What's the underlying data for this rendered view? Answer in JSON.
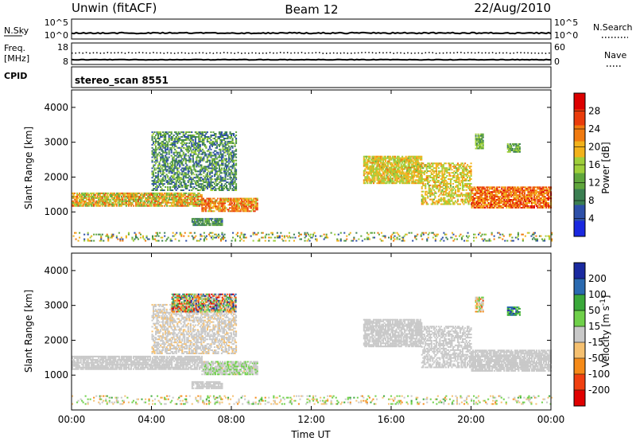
{
  "header": {
    "station": "Unwin (fitACF)",
    "beam": "Beam 12",
    "date": "22/Aug/2010"
  },
  "top_panels": {
    "nsky_label": "N.Sky",
    "nsearch_label": "N.Search",
    "nsky_ticks": [
      "10^5",
      "10^0"
    ],
    "nsearch_ticks": [
      "10^5",
      "10^0"
    ],
    "freq_label_1": "Freq.",
    "freq_label_2": "[MHz]",
    "freq_ticks": [
      "18",
      "8"
    ],
    "nave_label": "Nave",
    "nave_ticks": [
      "60",
      "0"
    ],
    "cpid_label": "CPID",
    "cpid_value": "stereo_scan 8551"
  },
  "colors": {
    "power_scale": [
      "#1a28e0",
      "#2d4fa8",
      "#3b7f52",
      "#5fa63c",
      "#9fcf3a",
      "#f2b21a",
      "#f07a10",
      "#ea3c0c",
      "#dc0000"
    ],
    "velocity_scale": [
      "#e00000",
      "#f04010",
      "#f58a18",
      "#f5c070",
      "#c8c8c8",
      "#6fd04a",
      "#3aa83a",
      "#2a6ab0",
      "#1a2aa0"
    ]
  },
  "chart_data": [
    {
      "type": "heatmap",
      "title": "Power",
      "xlabel": "Time UT",
      "ylabel": "Slant Range [km]",
      "x_ticks": [
        "00:00",
        "04:00",
        "08:00",
        "12:00",
        "16:00",
        "20:00",
        "00:00"
      ],
      "y_ticks": [
        "1000",
        "2000",
        "3000",
        "4000"
      ],
      "xlim": [
        0,
        24
      ],
      "ylim": [
        0,
        4500
      ],
      "colorbar_label": "Power [dB]",
      "colorbar_ticks": [
        "4",
        "8",
        "12",
        "16",
        "20",
        "24",
        "28"
      ],
      "colorbar_range": [
        0,
        32
      ],
      "regions": [
        {
          "t0": 0.0,
          "t1": 6.5,
          "r0": 1150,
          "r1": 1550,
          "value_range": [
            12,
            26
          ]
        },
        {
          "t0": 6.5,
          "t1": 9.3,
          "r0": 1000,
          "r1": 1400,
          "value_range": [
            16,
            28
          ]
        },
        {
          "t0": 4.0,
          "t1": 8.2,
          "r0": 1600,
          "r1": 3300,
          "value_range": [
            4,
            16
          ]
        },
        {
          "t0": 6.0,
          "t1": 7.5,
          "r0": 600,
          "r1": 800,
          "value_range": [
            6,
            14
          ]
        },
        {
          "t0": 14.6,
          "t1": 17.5,
          "r0": 1800,
          "r1": 2600,
          "value_range": [
            14,
            22
          ]
        },
        {
          "t0": 17.5,
          "t1": 20.0,
          "r0": 1200,
          "r1": 2400,
          "value_range": [
            14,
            22
          ]
        },
        {
          "t0": 20.0,
          "t1": 24.0,
          "r0": 1100,
          "r1": 1700,
          "value_range": [
            18,
            30
          ]
        },
        {
          "t0": 20.2,
          "t1": 20.6,
          "r0": 2800,
          "r1": 3250,
          "value_range": [
            8,
            18
          ]
        },
        {
          "t0": 21.8,
          "t1": 22.4,
          "r0": 2700,
          "r1": 2950,
          "value_range": [
            8,
            18
          ]
        },
        {
          "t0": 0.0,
          "t1": 24.0,
          "r0": 150,
          "r1": 400,
          "value_range": [
            4,
            24
          ]
        }
      ]
    },
    {
      "type": "heatmap",
      "title": "Velocity",
      "xlabel": "Time UT",
      "ylabel": "Slant Range [km]",
      "x_ticks": [
        "00:00",
        "04:00",
        "08:00",
        "12:00",
        "16:00",
        "20:00",
        "00:00"
      ],
      "y_ticks": [
        "1000",
        "2000",
        "3000",
        "4000"
      ],
      "xlim": [
        0,
        24
      ],
      "ylim": [
        0,
        4500
      ],
      "colorbar_label": "Velocity [m s^-1]",
      "colorbar_ticks": [
        "200",
        "100",
        "50",
        "15",
        "-15",
        "-50",
        "-100",
        "-200"
      ],
      "colorbar_range": [
        -250,
        250
      ],
      "regions": [
        {
          "t0": 0.0,
          "t1": 6.5,
          "r0": 1150,
          "r1": 1550,
          "value_range": [
            -15,
            15
          ]
        },
        {
          "t0": 6.5,
          "t1": 9.3,
          "r0": 1000,
          "r1": 1400,
          "value_range": [
            -30,
            60
          ]
        },
        {
          "t0": 4.0,
          "t1": 8.2,
          "r0": 1600,
          "r1": 3000,
          "value_range": [
            -40,
            15
          ]
        },
        {
          "t0": 5.0,
          "t1": 8.2,
          "r0": 2800,
          "r1": 3300,
          "value_range": [
            -220,
            220
          ]
        },
        {
          "t0": 6.0,
          "t1": 7.5,
          "r0": 600,
          "r1": 800,
          "value_range": [
            -15,
            15
          ]
        },
        {
          "t0": 14.6,
          "t1": 17.5,
          "r0": 1800,
          "r1": 2600,
          "value_range": [
            -15,
            15
          ]
        },
        {
          "t0": 17.5,
          "t1": 20.0,
          "r0": 1200,
          "r1": 2400,
          "value_range": [
            -15,
            15
          ]
        },
        {
          "t0": 20.0,
          "t1": 24.0,
          "r0": 1100,
          "r1": 1700,
          "value_range": [
            -15,
            15
          ]
        },
        {
          "t0": 20.2,
          "t1": 20.6,
          "r0": 2800,
          "r1": 3250,
          "value_range": [
            -150,
            80
          ]
        },
        {
          "t0": 21.8,
          "t1": 22.4,
          "r0": 2700,
          "r1": 2950,
          "value_range": [
            50,
            220
          ]
        },
        {
          "t0": 0.0,
          "t1": 24.0,
          "r0": 150,
          "r1": 400,
          "value_range": [
            -100,
            100
          ]
        }
      ]
    }
  ]
}
